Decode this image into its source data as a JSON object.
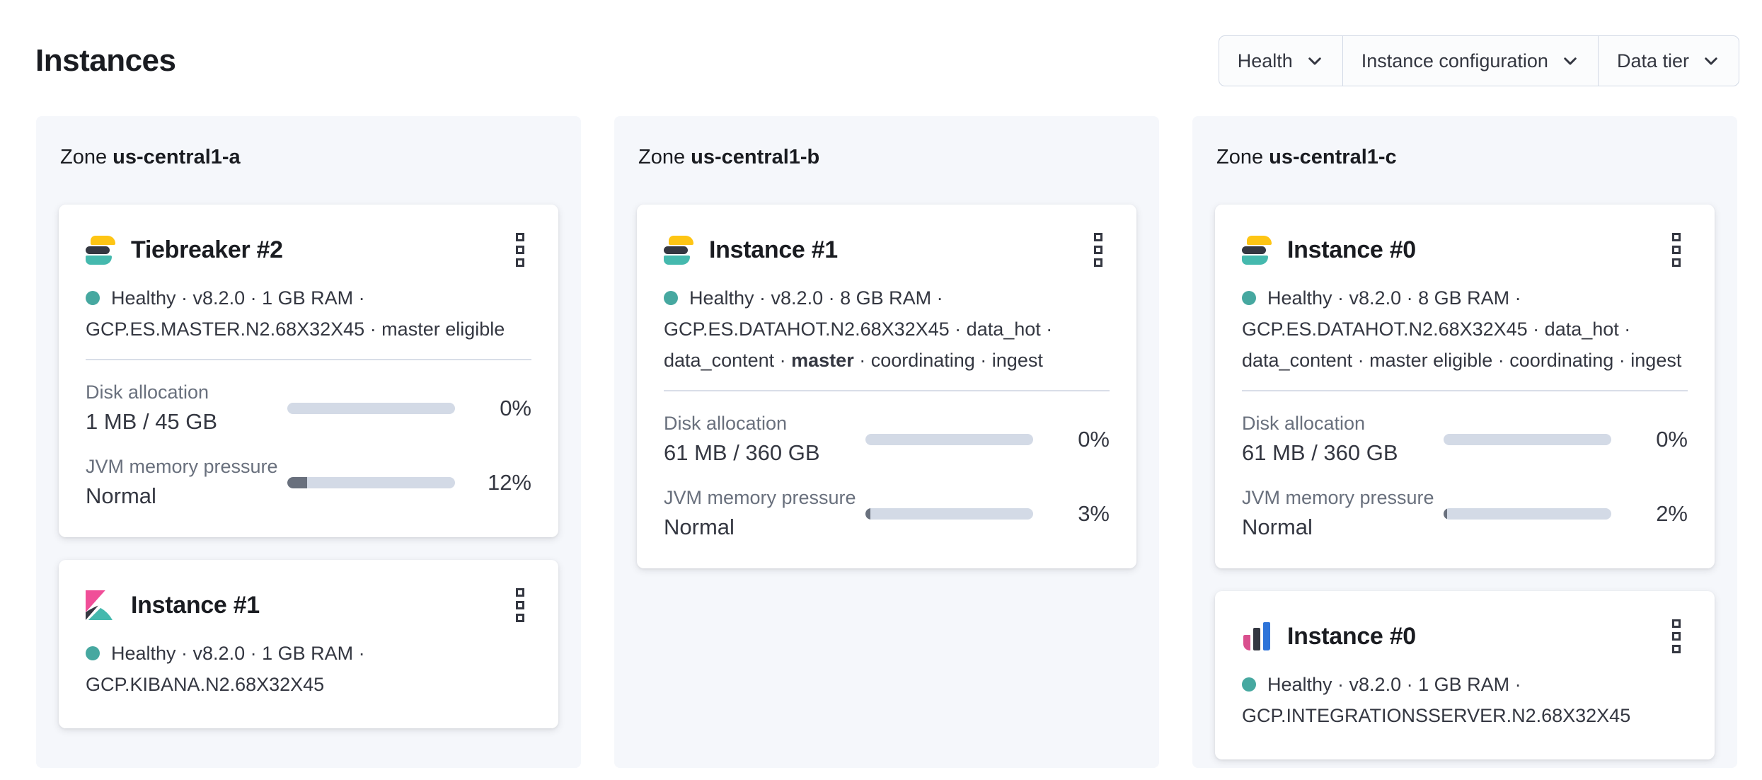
{
  "page": {
    "title": "Instances"
  },
  "filters": [
    {
      "label": "Health"
    },
    {
      "label": "Instance configuration"
    },
    {
      "label": "Data tier"
    }
  ],
  "colors": {
    "status_healthy_dot": "#46a8a0",
    "bar_track": "#d3dae6",
    "bar_fill": "#69707d",
    "elastic_yellow": "#fec514",
    "elastic_dark": "#343741",
    "elastic_teal": "#45b9ae",
    "kibana_pink": "#f04e98",
    "integrations_blue": "#2e74d9"
  },
  "zones": [
    {
      "label_prefix": "Zone",
      "name": "us-central1-a",
      "instances": [
        {
          "icon": "elasticsearch",
          "title": "Tiebreaker #2",
          "health": "Healthy",
          "status_lines": [
            [
              {
                "t": "Healthy · v8.2.0 · 1 GB RAM ·"
              }
            ],
            [
              {
                "t": "GCP.ES.MASTER.N2.68X32X45 · master eligible"
              }
            ]
          ],
          "divider": true,
          "metrics": [
            {
              "label": "Disk allocation",
              "value": "1 MB / 45 GB",
              "percent": "0%",
              "fill": 0
            },
            {
              "label": "JVM memory pressure",
              "value": "Normal",
              "percent": "12%",
              "fill": 12
            }
          ]
        },
        {
          "icon": "kibana",
          "title": "Instance #1",
          "health": "Healthy",
          "status_lines": [
            [
              {
                "t": "Healthy · v8.2.0 · 1 GB RAM ·"
              }
            ],
            [
              {
                "t": "GCP.KIBANA.N2.68X32X45"
              }
            ]
          ],
          "divider": false,
          "metrics": []
        }
      ]
    },
    {
      "label_prefix": "Zone",
      "name": "us-central1-b",
      "instances": [
        {
          "icon": "elasticsearch",
          "title": "Instance #1",
          "health": "Healthy",
          "status_lines": [
            [
              {
                "t": "Healthy · v8.2.0 · 8 GB RAM ·"
              }
            ],
            [
              {
                "t": "GCP.ES.DATAHOT.N2.68X32X45 · data_hot ·"
              }
            ],
            [
              {
                "t": "data_content · "
              },
              {
                "t": "master",
                "b": true
              },
              {
                "t": " · coordinating · ingest"
              }
            ]
          ],
          "divider": true,
          "metrics": [
            {
              "label": "Disk allocation",
              "value": "61 MB / 360 GB",
              "percent": "0%",
              "fill": 0
            },
            {
              "label": "JVM memory pressure",
              "value": "Normal",
              "percent": "3%",
              "fill": 3
            }
          ]
        }
      ]
    },
    {
      "label_prefix": "Zone",
      "name": "us-central1-c",
      "instances": [
        {
          "icon": "elasticsearch",
          "title": "Instance #0",
          "health": "Healthy",
          "status_lines": [
            [
              {
                "t": "Healthy · v8.2.0 · 8 GB RAM ·"
              }
            ],
            [
              {
                "t": "GCP.ES.DATAHOT.N2.68X32X45 · data_hot ·"
              }
            ],
            [
              {
                "t": "data_content · master eligible · coordinating · ingest"
              }
            ]
          ],
          "divider": true,
          "metrics": [
            {
              "label": "Disk allocation",
              "value": "61 MB / 360 GB",
              "percent": "0%",
              "fill": 0
            },
            {
              "label": "JVM memory pressure",
              "value": "Normal",
              "percent": "2%",
              "fill": 2
            }
          ]
        },
        {
          "icon": "integrations",
          "title": "Instance #0",
          "health": "Healthy",
          "status_lines": [
            [
              {
                "t": "Healthy · v8.2.0 · 1 GB RAM ·"
              }
            ],
            [
              {
                "t": "GCP.INTEGRATIONSSERVER.N2.68X32X45"
              }
            ]
          ],
          "divider": false,
          "metrics": []
        }
      ]
    }
  ]
}
